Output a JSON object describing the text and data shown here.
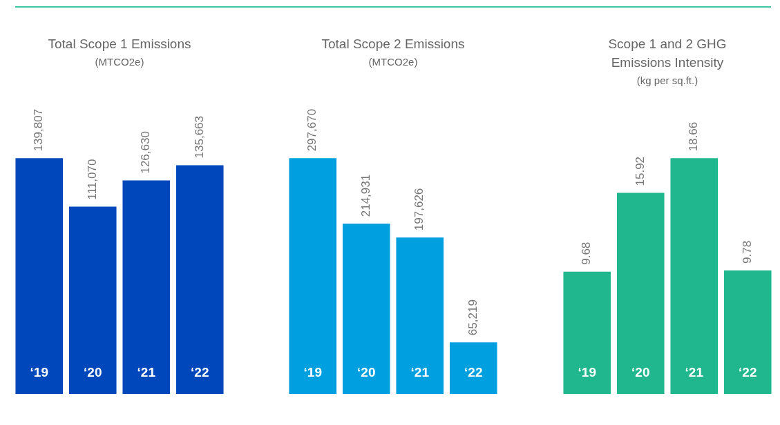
{
  "chart_data": [
    {
      "type": "bar",
      "title": "Total Scope 1 Emissions",
      "subtitle": "(MTCO2e)",
      "categories": [
        "‘19",
        "‘20",
        "‘21",
        "‘22"
      ],
      "values": [
        139807,
        111070,
        126630,
        135663
      ],
      "value_labels": [
        "139,807",
        "111,070",
        "126,630",
        "135,663"
      ],
      "color": "#0047bb"
    },
    {
      "type": "bar",
      "title": "Total Scope 2 Emissions",
      "subtitle": "(MTCO2e)",
      "categories": [
        "‘19",
        "‘20",
        "‘21",
        "‘22"
      ],
      "values": [
        297670,
        214931,
        197626,
        65219
      ],
      "value_labels": [
        "297,670",
        "214,931",
        "197,626",
        "65,219"
      ],
      "color": "#009fdf"
    },
    {
      "type": "bar",
      "title": "Scope 1 and 2 GHG Emissions Intensity",
      "subtitle": "(kg per sq.ft.)",
      "categories": [
        "‘19",
        "‘20",
        "‘21",
        "‘22"
      ],
      "values": [
        9.68,
        15.92,
        18.66,
        9.78
      ],
      "color": "#20b78f",
      "data_labels": true
    }
  ]
}
